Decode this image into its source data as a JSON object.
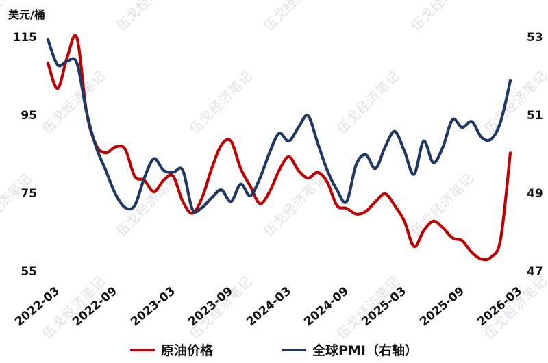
{
  "watermark": {
    "text": "伍戈经济笔记",
    "color": "#e1e1e4"
  },
  "legend": {
    "note": "labels bound from chart_data.series names"
  },
  "chart_data": {
    "type": "line",
    "title": "",
    "left_axis": {
      "label": "美元/桶",
      "ticks": [
        115,
        95,
        75,
        55
      ],
      "range": [
        55,
        115
      ]
    },
    "right_axis": {
      "ticks": [
        53,
        51,
        49,
        47
      ],
      "range": [
        47,
        53
      ]
    },
    "x_tick_labels": [
      "2022-03",
      "2022-09",
      "2023-03",
      "2023-09",
      "2024-03",
      "2024-09",
      "2025-03",
      "2025-09",
      "2026-03"
    ],
    "x": {
      "start": "2022-03",
      "end": "2026-03",
      "interval": "monthly",
      "points": 49
    },
    "grid": false,
    "legend_position": "bottom",
    "series": [
      {
        "name": "原油价格",
        "axis": "left",
        "color": "#c00000",
        "values": [
          108.5,
          102,
          110,
          115,
          96,
          87.5,
          85.5,
          87,
          86.5,
          79.5,
          78.5,
          75.5,
          78.5,
          79.5,
          73,
          70,
          74,
          81.5,
          87.5,
          88.5,
          81.5,
          77,
          72.5,
          75.5,
          81,
          84.5,
          81,
          79,
          80.5,
          78,
          72,
          71.3,
          69.8,
          70.5,
          73,
          75,
          72,
          68,
          61.5,
          65.5,
          68,
          66.3,
          63.7,
          63,
          60,
          58.3,
          58.8,
          63.5,
          85.5
        ]
      },
      {
        "name": "全球PMI（右轴）",
        "axis": "right",
        "color": "#1f3864",
        "values": [
          52.95,
          52.3,
          52.4,
          52.35,
          51.1,
          50.2,
          49.6,
          49.0,
          48.65,
          48.7,
          49.4,
          49.9,
          49.6,
          49.55,
          49.6,
          48.6,
          48.65,
          48.9,
          49.1,
          48.8,
          49.25,
          48.95,
          49.4,
          50.05,
          50.55,
          50.35,
          50.7,
          51.0,
          50.3,
          49.6,
          49.1,
          48.8,
          49.75,
          50.0,
          49.65,
          50.2,
          50.6,
          50.1,
          49.5,
          50.35,
          49.8,
          50.2,
          50.9,
          50.7,
          50.85,
          50.45,
          50.4,
          50.85,
          51.9
        ]
      }
    ]
  }
}
